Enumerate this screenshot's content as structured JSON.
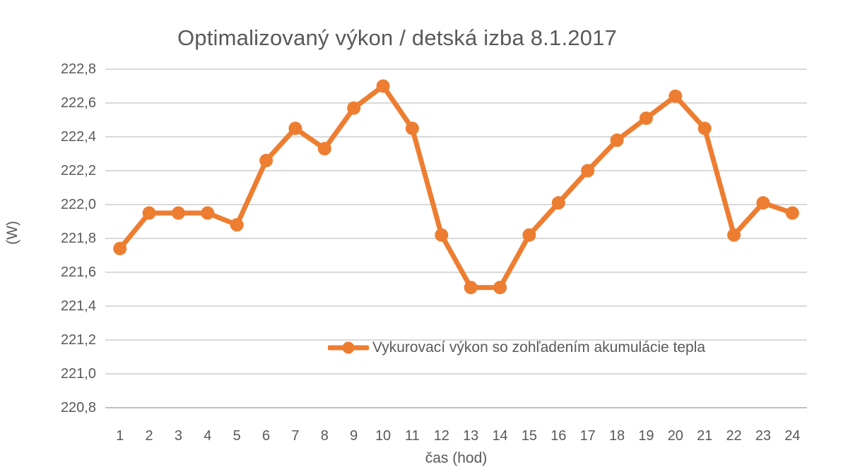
{
  "page": {
    "background": "#FFFFFF"
  },
  "chart_data": {
    "type": "line",
    "title": "Optimalizovaný výkon / detská izba 8.1.2017",
    "xlabel": "čas (hod)",
    "ylabel": "(W)",
    "categories": [
      "1",
      "2",
      "3",
      "4",
      "5",
      "6",
      "7",
      "8",
      "9",
      "10",
      "11",
      "12",
      "13",
      "14",
      "15",
      "16",
      "17",
      "18",
      "19",
      "20",
      "21",
      "22",
      "23",
      "24"
    ],
    "series": [
      {
        "name": "Vykurovací výkon so zohľadením akumulácie tepla",
        "color": "#ED7D31",
        "marker": "circle",
        "values": [
          221.74,
          221.95,
          221.95,
          221.95,
          221.88,
          222.26,
          222.45,
          222.33,
          222.57,
          222.7,
          222.45,
          221.82,
          221.51,
          221.51,
          221.82,
          222.01,
          222.2,
          222.38,
          222.51,
          222.64,
          222.45,
          221.82,
          222.01,
          221.95
        ]
      }
    ],
    "ylim": [
      220.8,
      222.8
    ],
    "y_tick_step": 0.2,
    "y_tick_labels": [
      "222,8",
      "222,6",
      "222,4",
      "222,2",
      "222,0",
      "221,8",
      "221,6",
      "221,4",
      "221,2",
      "221,0",
      "220,8"
    ],
    "decimal_separator": ",",
    "grid": "horizontal",
    "legend_position": "inside-bottom",
    "colors": {
      "text": "#595959",
      "gridline": "#D9D9D9",
      "axis_line": "#BFBFBF",
      "background": "#FFFFFF"
    }
  }
}
